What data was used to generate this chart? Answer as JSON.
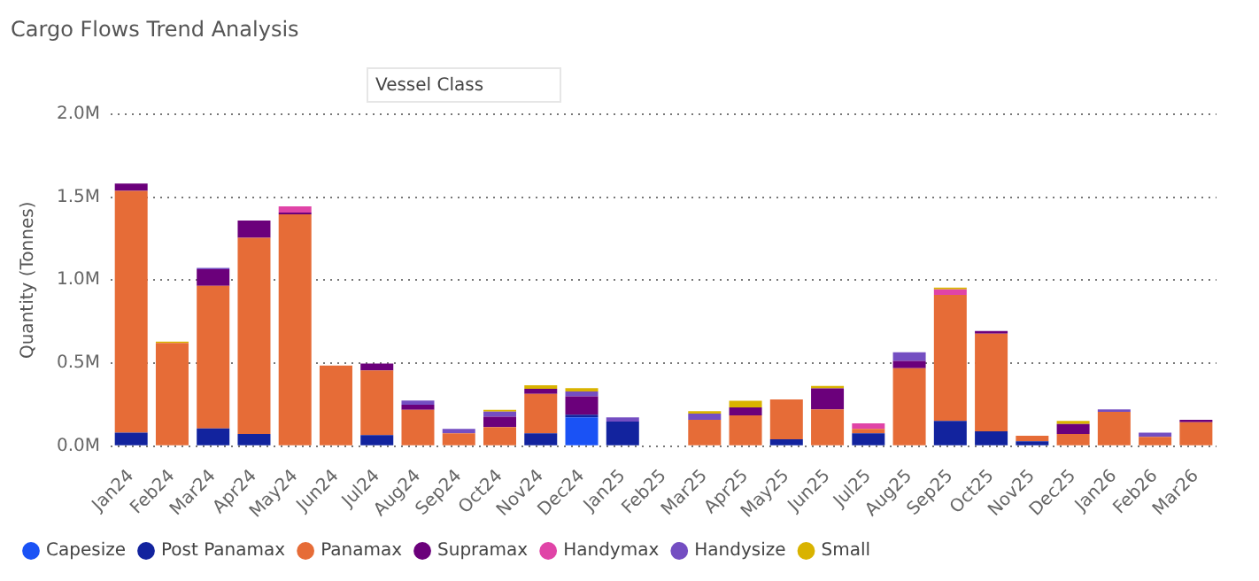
{
  "chart_data": {
    "type": "bar",
    "stacked": true,
    "title": "Cargo Flows Trend Analysis",
    "legend_title": "Vessel Class",
    "ylabel": "Quantity (Tonnes)",
    "categories": [
      "Jan24",
      "Feb24",
      "Mar24",
      "Apr24",
      "May24",
      "Jun24",
      "Jul24",
      "Aug24",
      "Sep24",
      "Oct24",
      "Nov24",
      "Dec24",
      "Jan25",
      "Feb25",
      "Mar25",
      "Apr25",
      "May25",
      "Jun25",
      "Jul25",
      "Aug25",
      "Sep25",
      "Oct25",
      "Nov25",
      "Dec25",
      "Jan26",
      "Feb26",
      "Mar26"
    ],
    "series": [
      {
        "name": "Capesize",
        "color": "#1a52f5",
        "values": [
          null,
          null,
          null,
          null,
          null,
          null,
          null,
          null,
          null,
          null,
          null,
          174000,
          null,
          null,
          null,
          null,
          null,
          null,
          null,
          null,
          null,
          null,
          null,
          null,
          null,
          null,
          null
        ]
      },
      {
        "name": "Post Panamax",
        "color": "#12239e",
        "values": [
          81000,
          null,
          107000,
          74000,
          null,
          null,
          67000,
          null,
          null,
          null,
          78000,
          15000,
          148000,
          null,
          null,
          null,
          41000,
          null,
          78000,
          null,
          152000,
          89000,
          30000,
          null,
          null,
          null,
          null
        ]
      },
      {
        "name": "Panamax",
        "color": "#e66c37",
        "values": [
          1456000,
          622000,
          859000,
          1181000,
          1396000,
          485000,
          389000,
          219000,
          78000,
          115000,
          237000,
          null,
          null,
          null,
          159000,
          185000,
          241000,
          222000,
          26000,
          470000,
          759000,
          589000,
          33000,
          74000,
          207000,
          56000,
          144000
        ]
      },
      {
        "name": "Supramax",
        "color": "#6b007b",
        "values": [
          44000,
          null,
          100000,
          104000,
          11000,
          null,
          41000,
          30000,
          null,
          63000,
          30000,
          111000,
          null,
          null,
          null,
          48000,
          null,
          126000,
          null,
          44000,
          null,
          15000,
          null,
          59000,
          null,
          null,
          15000
        ]
      },
      {
        "name": "Handymax",
        "color": "#e044a7",
        "values": [
          null,
          null,
          null,
          null,
          37000,
          null,
          null,
          null,
          null,
          null,
          null,
          null,
          null,
          null,
          null,
          null,
          null,
          null,
          33000,
          null,
          33000,
          null,
          null,
          null,
          null,
          null,
          null
        ]
      },
      {
        "name": "Handysize",
        "color": "#744ec2",
        "values": [
          null,
          null,
          7000,
          null,
          null,
          null,
          null,
          26000,
          26000,
          30000,
          null,
          30000,
          26000,
          null,
          37000,
          null,
          null,
          null,
          null,
          52000,
          null,
          null,
          null,
          null,
          15000,
          26000,
          null
        ]
      },
      {
        "name": "Small",
        "color": "#d9b300",
        "values": [
          null,
          7000,
          null,
          null,
          null,
          null,
          null,
          null,
          null,
          11000,
          22000,
          19000,
          null,
          null,
          15000,
          41000,
          null,
          15000,
          null,
          null,
          11000,
          null,
          null,
          19000,
          null,
          null,
          null
        ]
      }
    ],
    "ylim": [
      0,
      2000000
    ],
    "yticks": [
      {
        "value": 0,
        "label": "0.0M"
      },
      {
        "value": 500000,
        "label": "0.5M"
      },
      {
        "value": 1000000,
        "label": "1.0M"
      },
      {
        "value": 1500000,
        "label": "1.5M"
      },
      {
        "value": 2000000,
        "label": "2.0M"
      }
    ],
    "grid": "y",
    "legend": "bottom left"
  }
}
